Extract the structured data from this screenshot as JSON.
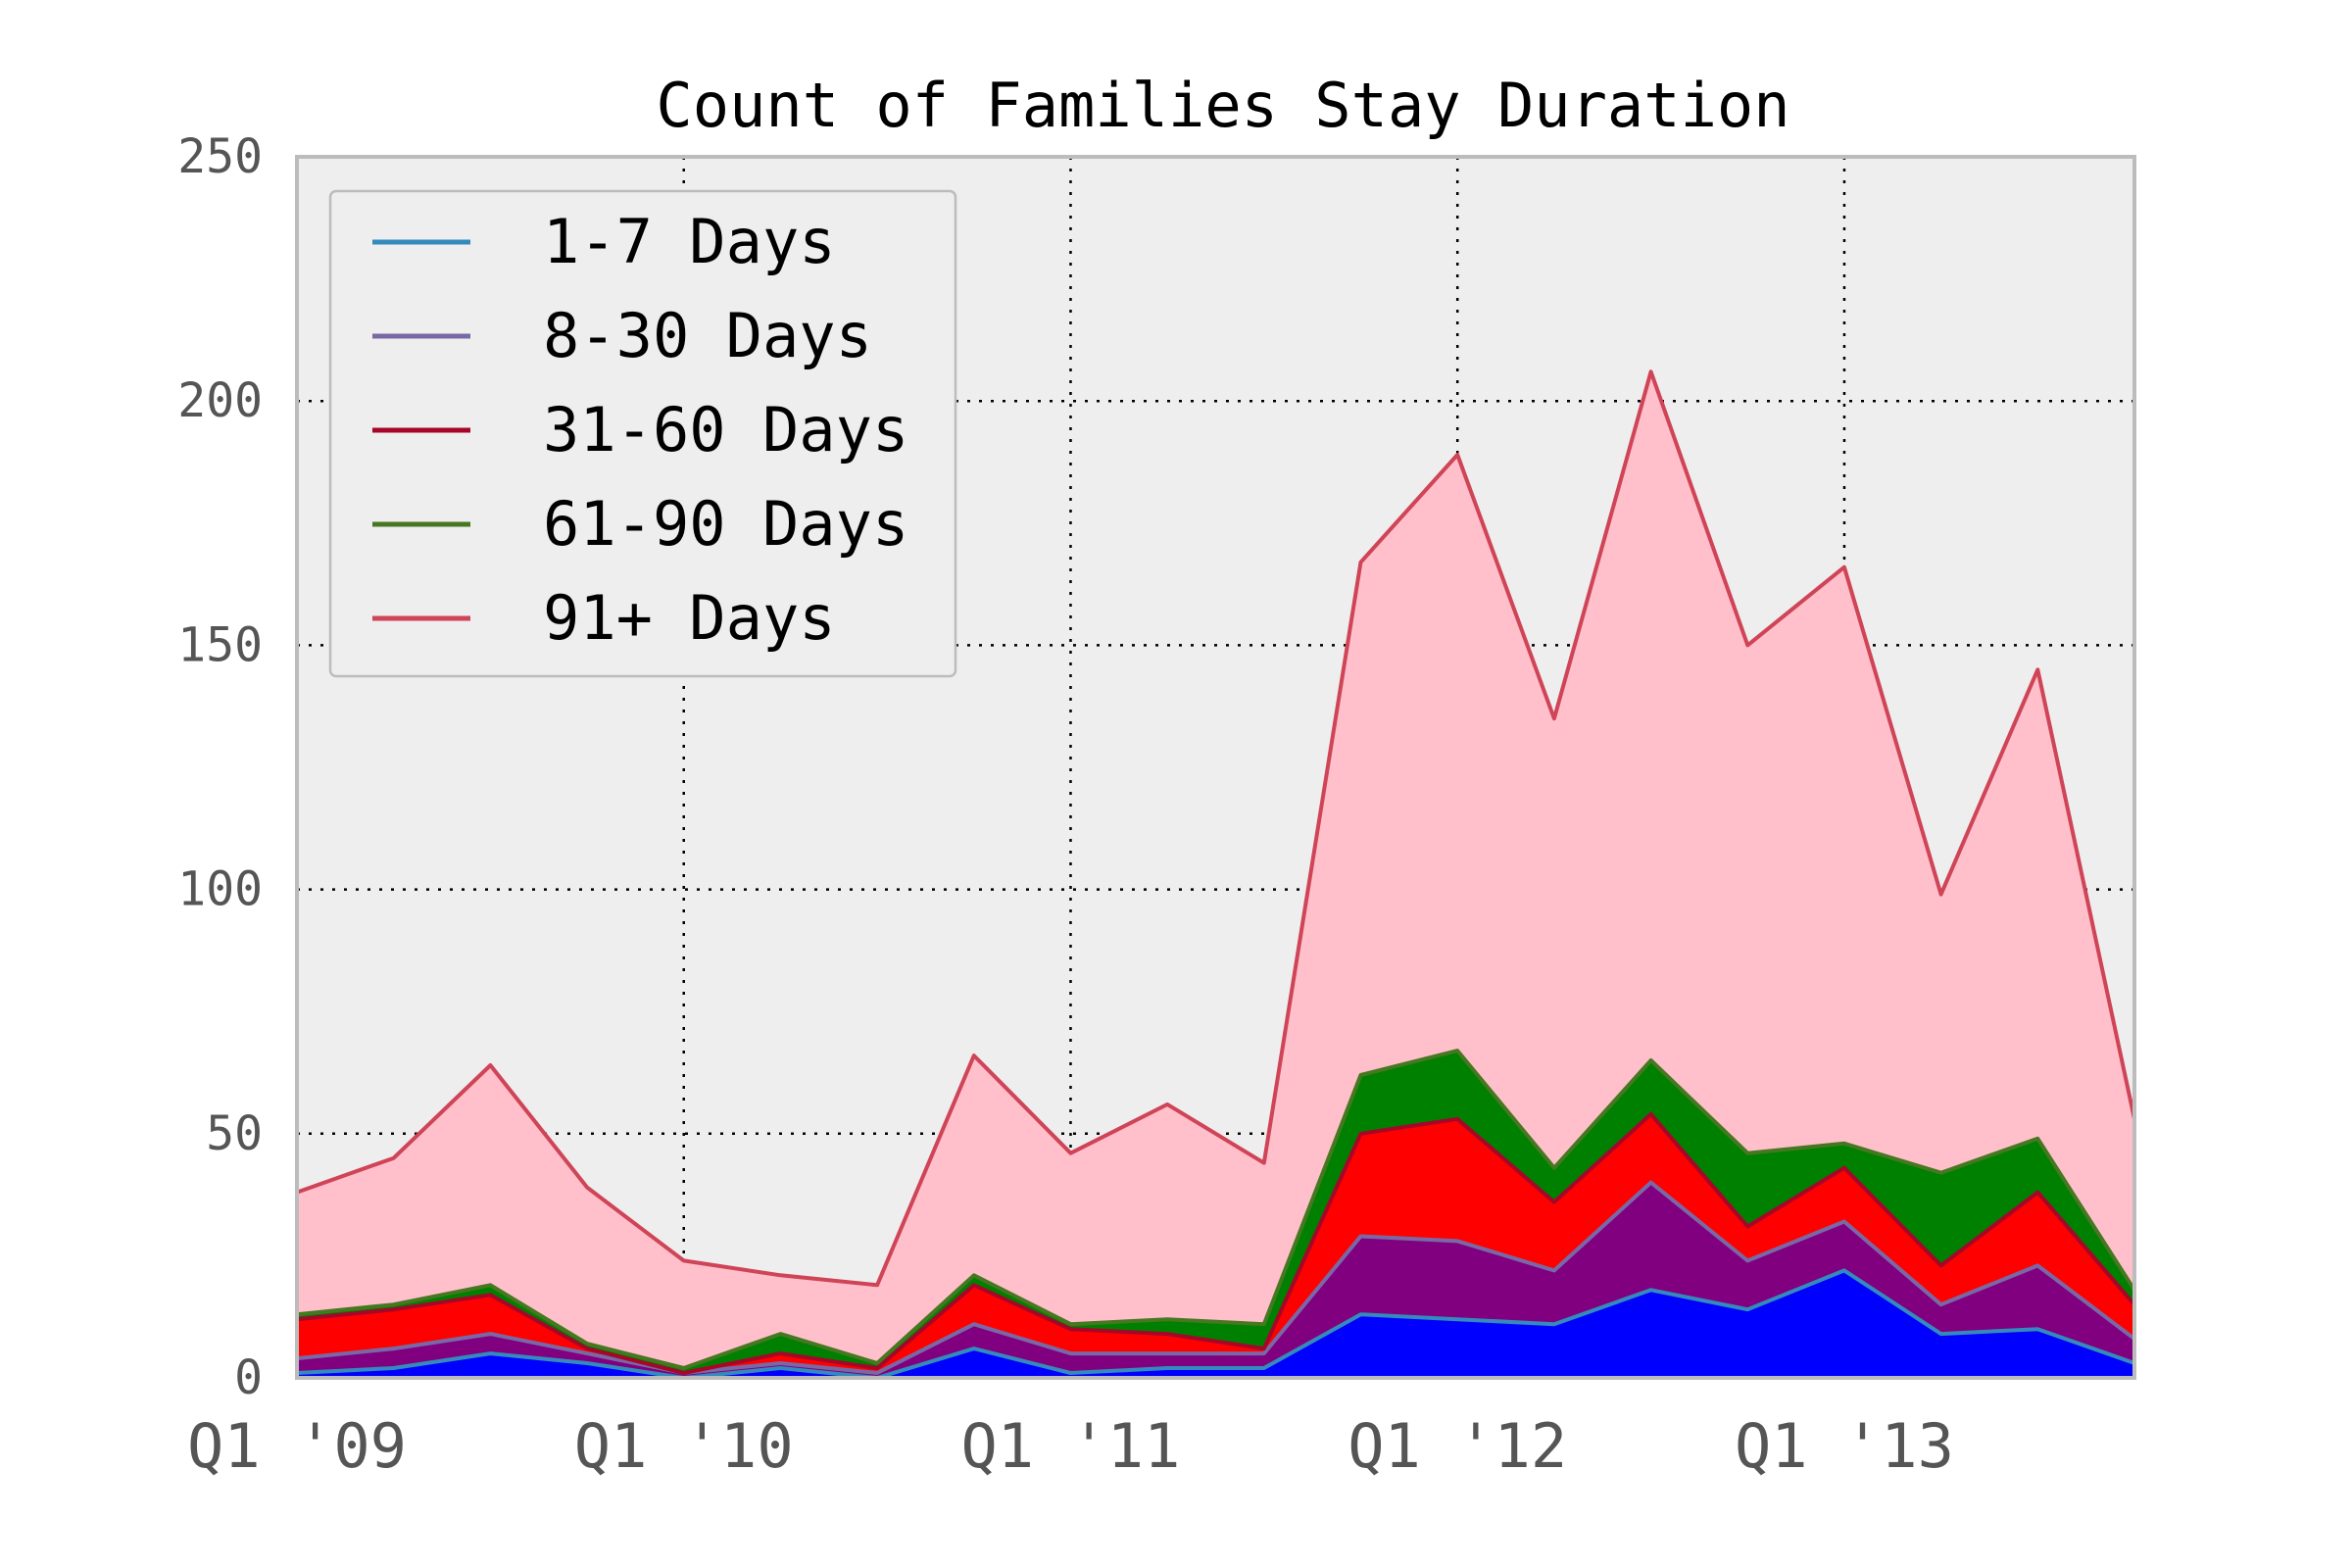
{
  "chart_data": {
    "type": "area",
    "stacked": true,
    "title": "Count of Families Stay Duration",
    "xlabel": "",
    "ylabel": "",
    "ylim": [
      0,
      250
    ],
    "yticks": [
      0,
      50,
      100,
      150,
      200,
      250
    ],
    "x": [
      0,
      1,
      2,
      3,
      4,
      5,
      6,
      7,
      8,
      9,
      10,
      11,
      12,
      13,
      14,
      15,
      16,
      17,
      18,
      19
    ],
    "xlim": [
      0,
      19
    ],
    "xtick_positions": [
      0,
      4,
      8,
      12,
      16
    ],
    "xtick_labels": [
      "Q1 '09",
      "Q1 '10",
      "Q1 '11",
      "Q1 '12",
      "Q1 '13"
    ],
    "grid": true,
    "legend_position": "top-left",
    "series": [
      {
        "name": "1-7 Days",
        "values": [
          1,
          2,
          5,
          3,
          0,
          2,
          0,
          6,
          1,
          2,
          2,
          13,
          12,
          11,
          18,
          14,
          22,
          9,
          10,
          3
        ],
        "fill": "#0000ff",
        "line": "#348abd"
      },
      {
        "name": "8-30 Days",
        "values": [
          3,
          4,
          4,
          2,
          1,
          1,
          1,
          5,
          4,
          3,
          3,
          16,
          16,
          11,
          22,
          10,
          10,
          6,
          13,
          5
        ],
        "fill": "#800080",
        "line": "#7a68a6"
      },
      {
        "name": "31-60 Days",
        "values": [
          8,
          8,
          8,
          1,
          0,
          2,
          1,
          8,
          5,
          4,
          1,
          21,
          25,
          14,
          14,
          7,
          11,
          8,
          15,
          7
        ],
        "fill": "#ff0000",
        "line": "#a60628"
      },
      {
        "name": "61-90 Days",
        "values": [
          1,
          1,
          2,
          1,
          1,
          4,
          1,
          2,
          1,
          3,
          5,
          12,
          14,
          7,
          11,
          15,
          5,
          19,
          11,
          3
        ],
        "fill": "#008000",
        "line": "#467821"
      },
      {
        "name": "91+ Days",
        "values": [
          25,
          30,
          45,
          32,
          22,
          12,
          16,
          45,
          35,
          44,
          33,
          105,
          122,
          92,
          141,
          104,
          118,
          57,
          96,
          35
        ],
        "fill": "#ffc0cb",
        "line": "#cf4457"
      }
    ]
  }
}
